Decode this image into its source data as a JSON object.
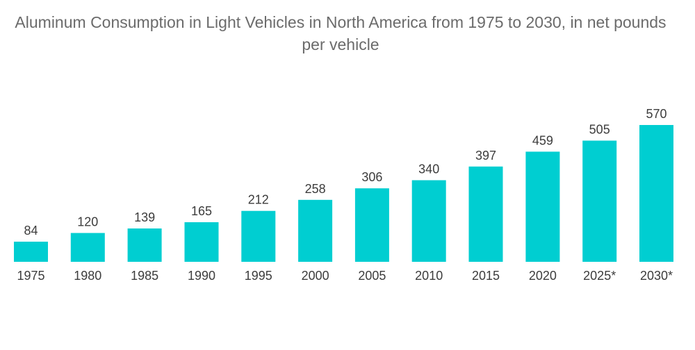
{
  "chart_data": {
    "type": "bar",
    "title": "Aluminum Consumption in Light Vehicles in North America from 1975 to 2030, in net pounds per vehicle",
    "categories": [
      "1975",
      "1980",
      "1985",
      "1990",
      "1995",
      "2000",
      "2005",
      "2010",
      "2015",
      "2020",
      "2025*",
      "2030*"
    ],
    "values": [
      84,
      120,
      139,
      165,
      212,
      258,
      306,
      340,
      397,
      459,
      505,
      570
    ],
    "ylim": [
      0,
      570
    ],
    "grid": false,
    "legend": "none",
    "data_labels": true,
    "bar_color": "#00ced1"
  }
}
